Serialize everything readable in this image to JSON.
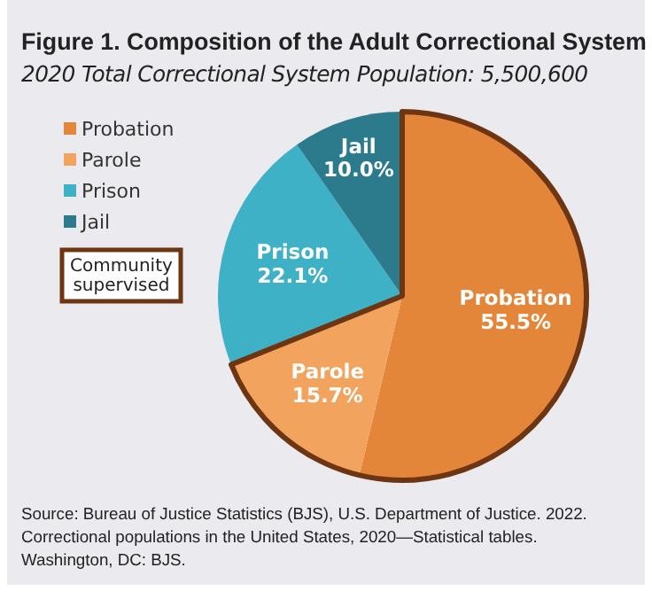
{
  "chart_data": {
    "type": "pie",
    "title": "Figure 1. Composition of the Adult Correctional System",
    "subtitle": "2020 Total Correctional System Population: 5,500,600",
    "categories": [
      "Probation",
      "Parole",
      "Prison",
      "Jail"
    ],
    "values": [
      55.5,
      15.7,
      22.1,
      10.0
    ],
    "colors": [
      "#e3863a",
      "#f2a45f",
      "#3fb1c6",
      "#2b7b8c"
    ],
    "value_labels": [
      "55.5%",
      "15.7%",
      "22.1%",
      "10.0%"
    ],
    "legend": "top left",
    "annotations": [
      "Community supervised",
      "Source: Bureau of Justice Statistics (BJS), U.S. Department of Justice. 2022. Correctional populations in the United States, 2020—Statistical tables. Washington, DC: BJS."
    ]
  }
}
